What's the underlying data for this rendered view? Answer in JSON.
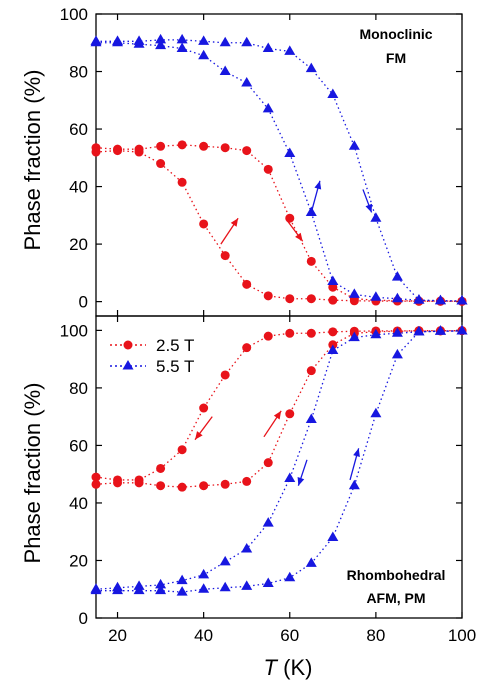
{
  "chart_data": [
    {
      "type": "scatter",
      "panel": "top",
      "ylabel": "Phase fraction (%)",
      "ylim": [
        -5,
        100
      ],
      "yticks": [
        0,
        20,
        40,
        60,
        80,
        100
      ],
      "annotation": [
        "Monoclinic",
        "FM"
      ],
      "series": [
        {
          "name": "2.5 T",
          "color": "#e8131a",
          "marker": "circle",
          "branches": [
            {
              "label": "upper branch",
              "x": [
                15,
                20,
                25,
                30,
                35,
                40,
                45,
                50,
                55,
                60,
                65,
                70,
                75,
                80,
                85,
                90,
                95,
                100
              ],
              "y": [
                53.5,
                53,
                53,
                54,
                54.5,
                54,
                53.5,
                52.5,
                46,
                29,
                14,
                5,
                1,
                0.5,
                0.3,
                0.2,
                0.2,
                0.1
              ]
            },
            {
              "label": "lower branch",
              "x": [
                15,
                20,
                25,
                30,
                35,
                40,
                45,
                50,
                55,
                60,
                65,
                70,
                75,
                80,
                85,
                90,
                95,
                100
              ],
              "y": [
                52,
                52.5,
                52,
                48,
                41.5,
                27,
                16,
                6,
                2,
                1,
                1,
                0.5,
                0.3,
                0.2,
                0.2,
                0.1,
                0.1,
                0.1
              ]
            }
          ]
        },
        {
          "name": "5.5 T",
          "color": "#1717e0",
          "marker": "triangle",
          "branches": [
            {
              "label": "upper branch",
              "x": [
                15,
                20,
                25,
                30,
                35,
                40,
                45,
                50,
                55,
                60,
                65,
                70,
                75,
                80,
                85,
                90,
                95,
                100
              ],
              "y": [
                90.5,
                90.5,
                90.5,
                91,
                91,
                90.5,
                90,
                90,
                88,
                87,
                81,
                72,
                54,
                29,
                8.5,
                0.5,
                0.3,
                0.2
              ]
            },
            {
              "label": "lower branch",
              "x": [
                15,
                20,
                25,
                30,
                35,
                40,
                45,
                50,
                55,
                60,
                65,
                70,
                75,
                80,
                85,
                90,
                95,
                100
              ],
              "y": [
                90,
                90,
                89.5,
                89,
                88,
                85.5,
                80,
                76,
                67,
                51.5,
                31,
                7,
                2.5,
                1.5,
                1,
                0.5,
                0.3,
                0.2
              ]
            }
          ]
        }
      ],
      "arrows": [
        {
          "color": "#e8131a",
          "direction": "up",
          "from": [
            44,
            20
          ],
          "to": [
            48,
            29
          ]
        },
        {
          "color": "#e8131a",
          "direction": "down",
          "from": [
            59.5,
            28
          ],
          "to": [
            63,
            21
          ]
        },
        {
          "color": "#1717e0",
          "direction": "up",
          "from": [
            65,
            31
          ],
          "to": [
            67,
            42
          ]
        },
        {
          "color": "#1717e0",
          "direction": "down",
          "from": [
            77,
            39
          ],
          "to": [
            79,
            31
          ]
        }
      ]
    },
    {
      "type": "scatter",
      "panel": "bottom",
      "xlabel": "T (K)",
      "ylabel": "Phase fraction (%)",
      "xlim": [
        15,
        100
      ],
      "ylim": [
        0,
        105
      ],
      "xticks": [
        20,
        40,
        60,
        80,
        100
      ],
      "yticks": [
        0,
        20,
        40,
        60,
        80,
        100
      ],
      "annotation": [
        "Rhombohedral",
        "AFM, PM"
      ],
      "legend": {
        "placement": "top-left",
        "entries": [
          "2.5 T",
          "5.5 T"
        ]
      },
      "series": [
        {
          "name": "2.5 T",
          "color": "#e8131a",
          "marker": "circle",
          "branches": [
            {
              "label": "upper branch",
              "x": [
                15,
                20,
                25,
                30,
                35,
                40,
                45,
                50,
                55,
                60,
                65,
                70,
                75,
                80,
                85,
                90,
                95,
                100
              ],
              "y": [
                49,
                48,
                48,
                52,
                58.5,
                73,
                84.5,
                94,
                98,
                99,
                99,
                99.5,
                99.7,
                99.8,
                99.8,
                99.9,
                99.9,
                99.9
              ]
            },
            {
              "label": "lower branch",
              "x": [
                15,
                20,
                25,
                30,
                35,
                40,
                45,
                50,
                55,
                60,
                65,
                70,
                75,
                80,
                85,
                90,
                95,
                100
              ],
              "y": [
                46.5,
                47,
                47,
                46,
                45.5,
                46,
                46.5,
                47.5,
                54,
                71,
                86,
                95,
                99,
                99.5,
                99.7,
                99.8,
                99.8,
                99.9
              ]
            }
          ]
        },
        {
          "name": "5.5 T",
          "color": "#1717e0",
          "marker": "triangle",
          "branches": [
            {
              "label": "upper branch",
              "x": [
                15,
                20,
                25,
                30,
                35,
                40,
                45,
                50,
                55,
                60,
                65,
                70,
                75,
                80,
                85,
                90,
                95,
                100
              ],
              "y": [
                10,
                10.5,
                11,
                11.5,
                13,
                15,
                19.5,
                24,
                33,
                48.5,
                69,
                93,
                97.5,
                98.5,
                99,
                99.5,
                99.7,
                99.8
              ]
            },
            {
              "label": "lower branch",
              "x": [
                15,
                20,
                25,
                30,
                35,
                40,
                45,
                50,
                55,
                60,
                65,
                70,
                75,
                80,
                85,
                90,
                95,
                100
              ],
              "y": [
                9.5,
                9.5,
                9.5,
                9.5,
                9,
                10,
                10.5,
                11,
                12,
                14,
                19,
                28,
                46,
                71,
                91.5,
                99.5,
                99.7,
                99.8
              ]
            }
          ]
        }
      ],
      "arrows": [
        {
          "color": "#e8131a",
          "direction": "down",
          "from": [
            42,
            70
          ],
          "to": [
            38,
            62
          ]
        },
        {
          "color": "#e8131a",
          "direction": "up",
          "from": [
            54,
            63
          ],
          "to": [
            58,
            72
          ]
        },
        {
          "color": "#1717e0",
          "direction": "down",
          "from": [
            64,
            55
          ],
          "to": [
            62,
            46
          ]
        },
        {
          "color": "#1717e0",
          "direction": "up",
          "from": [
            74,
            48
          ],
          "to": [
            76,
            59
          ]
        }
      ]
    }
  ]
}
